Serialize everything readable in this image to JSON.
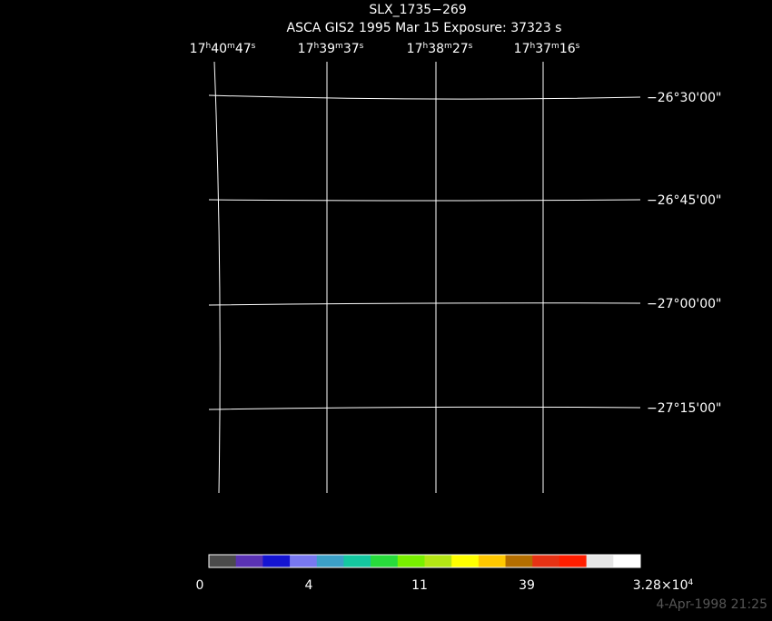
{
  "header": {
    "title": "SLX_1735−269",
    "subtitle": "ASCA GIS2   1995 Mar 15    Exposure: 37323 s"
  },
  "ra_labels": [
    [
      "17",
      "h",
      "40",
      "m",
      "47",
      "s"
    ],
    [
      "17",
      "h",
      "39",
      "m",
      "37",
      "s"
    ],
    [
      "17",
      "h",
      "38",
      "m",
      "27",
      "s"
    ],
    [
      "17",
      "h",
      "37",
      "m",
      "16",
      "s"
    ]
  ],
  "dec_labels": [
    "−26°30'00\"",
    "−26°45'00\"",
    "−27°00'00\"",
    "−27°15'00\""
  ],
  "colorbar": {
    "colors": [
      "#4b4b4b",
      "#5a32b4",
      "#1414d2",
      "#7878f0",
      "#3ca0c8",
      "#14c8a0",
      "#28dc3c",
      "#78f000",
      "#b4e614",
      "#ffff00",
      "#ffc800",
      "#b46e00",
      "#e63214",
      "#ff1e00",
      "#e6e6e6",
      "#ffffff"
    ],
    "labels": [
      [
        "0"
      ],
      [
        "4"
      ],
      [
        "11"
      ],
      [
        "39"
      ],
      [
        "3.28×10",
        "4"
      ]
    ]
  },
  "footer": "4-Apr-1998 21:25"
}
